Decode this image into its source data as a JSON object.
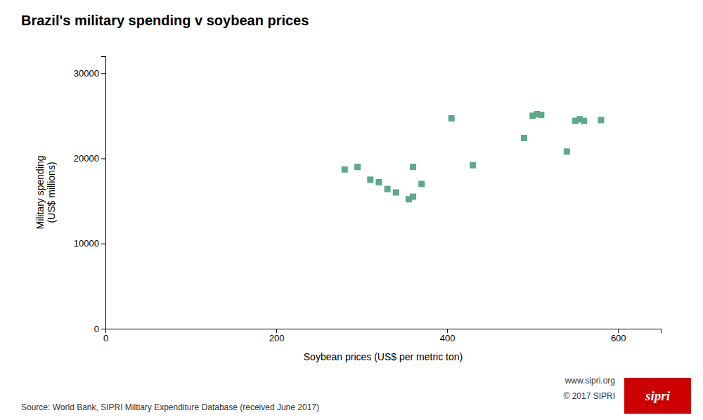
{
  "chart_data": {
    "type": "scatter",
    "title": "Brazil's military spending v soybean prices",
    "xlabel": "Soybean prices (US$ per metric ton)",
    "ylabel": "Military spending\n(US$ millions)",
    "x": [
      280,
      295,
      310,
      320,
      330,
      340,
      355,
      360,
      360,
      370,
      405,
      430,
      490,
      500,
      505,
      510,
      540,
      550,
      555,
      560,
      580
    ],
    "values": [
      18700,
      19000,
      17500,
      17200,
      16400,
      16000,
      15200,
      15500,
      19000,
      17000,
      24700,
      19200,
      22400,
      25000,
      25200,
      25100,
      20800,
      24400,
      24600,
      24400,
      24500
    ],
    "color": "#5aaa8c",
    "marker": "square",
    "xlim": [
      0,
      650
    ],
    "ylim": [
      0,
      32000
    ],
    "xticks": [
      0,
      200,
      400,
      600
    ],
    "yticks": [
      0,
      10000,
      20000,
      30000
    ],
    "grid": false,
    "annotations": [
      {
        "text": "Source: World Bank, SIPRI Miltiary Expenditure Database (received June 2017)"
      },
      {
        "text": "www.sipri.org"
      },
      {
        "text": "© 2017 SIPRI"
      },
      {
        "text": "sipri",
        "color": "#cc0000"
      }
    ]
  }
}
